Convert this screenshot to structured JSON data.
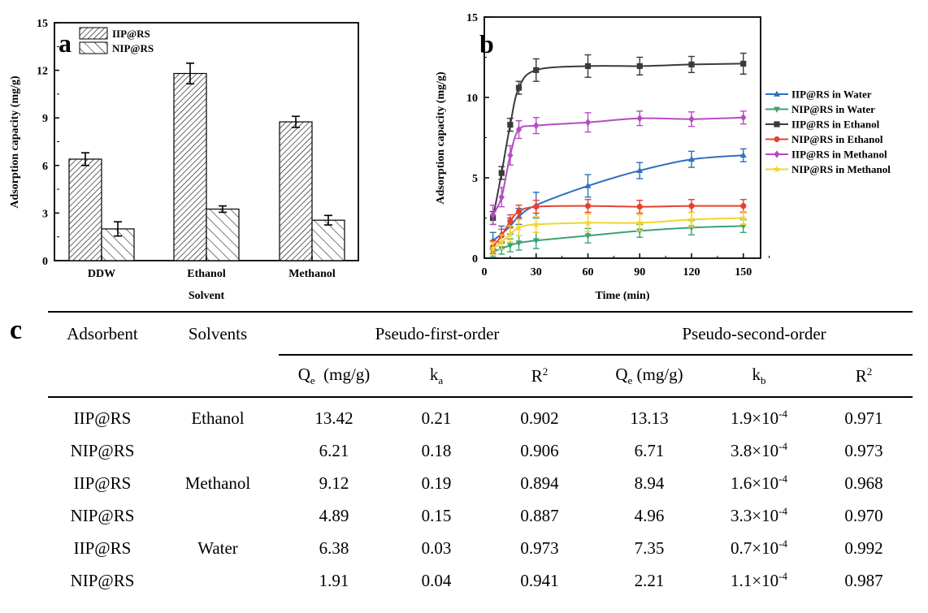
{
  "chart_data": [
    {
      "type": "bar",
      "panel_label": "a",
      "xlabel": "Solvent",
      "ylabel": "Adsorption capacity (mg/g)",
      "categories": [
        "DDW",
        "Ethanol",
        "Methanol"
      ],
      "ylim": [
        0,
        15
      ],
      "yticks": [
        "0",
        "3",
        "6",
        "9",
        "12",
        "15"
      ],
      "legend_position": "top-left",
      "series": [
        {
          "name": "IIP@RS",
          "values": [
            6.4,
            11.8,
            8.75
          ],
          "errors": [
            0.4,
            0.65,
            0.35
          ],
          "pattern": "dense-hatch"
        },
        {
          "name": "NIP@RS",
          "values": [
            2.0,
            3.25,
            2.55
          ],
          "errors": [
            0.45,
            0.2,
            0.3
          ],
          "pattern": "sparse-hatch"
        }
      ]
    },
    {
      "type": "line",
      "panel_label": "b",
      "xlabel": "Time (min)",
      "ylabel": "Adsorption capacity (mg/g)",
      "xlim": [
        0,
        160
      ],
      "ylim": [
        0,
        15
      ],
      "xticks": [
        "0",
        "30",
        "60",
        "90",
        "120",
        "150"
      ],
      "yticks": [
        "0",
        "5",
        "10",
        "15"
      ],
      "legend_position": "right",
      "series": [
        {
          "name": "IIP@RS in Water",
          "color": "#2f6fbf",
          "marker": "triangle-up",
          "x": [
            5,
            10,
            15,
            20,
            30,
            60,
            90,
            120,
            150
          ],
          "y": [
            1.1,
            1.5,
            2.0,
            2.6,
            3.3,
            4.5,
            5.45,
            6.15,
            6.4
          ],
          "err": [
            0.5,
            0.5,
            0.5,
            0.5,
            0.8,
            0.7,
            0.5,
            0.5,
            0.4
          ]
        },
        {
          "name": "NIP@RS in Water",
          "color": "#3aa376",
          "marker": "triangle-down",
          "x": [
            5,
            10,
            15,
            20,
            30,
            60,
            90,
            120,
            150
          ],
          "y": [
            0.4,
            0.6,
            0.8,
            0.95,
            1.1,
            1.4,
            1.7,
            1.9,
            2.0
          ],
          "err": [
            0.3,
            0.35,
            0.4,
            0.45,
            0.5,
            0.45,
            0.4,
            0.45,
            0.4
          ]
        },
        {
          "name": "IIP@RS in Ethanol",
          "color": "#3a3a3a",
          "marker": "square",
          "x": [
            5,
            10,
            15,
            20,
            30,
            60,
            90,
            120,
            150
          ],
          "y": [
            2.5,
            5.3,
            8.3,
            10.6,
            11.7,
            11.95,
            11.95,
            12.05,
            12.1
          ],
          "err": [
            0.4,
            0.4,
            0.4,
            0.4,
            0.7,
            0.7,
            0.55,
            0.5,
            0.65
          ]
        },
        {
          "name": "NIP@RS in Ethanol",
          "color": "#e8412f",
          "marker": "circle",
          "x": [
            5,
            10,
            15,
            20,
            30,
            60,
            90,
            120,
            150
          ],
          "y": [
            0.7,
            1.4,
            2.3,
            2.9,
            3.2,
            3.25,
            3.2,
            3.25,
            3.25
          ],
          "err": [
            0.4,
            0.4,
            0.4,
            0.4,
            0.4,
            0.4,
            0.4,
            0.4,
            0.4
          ]
        },
        {
          "name": "IIP@RS in Methanol",
          "color": "#b54cc2",
          "marker": "diamond",
          "x": [
            5,
            10,
            15,
            20,
            30,
            60,
            90,
            120,
            150
          ],
          "y": [
            2.7,
            3.8,
            6.4,
            8.0,
            8.25,
            8.45,
            8.7,
            8.65,
            8.75
          ],
          "err": [
            0.6,
            0.6,
            0.6,
            0.55,
            0.5,
            0.6,
            0.45,
            0.45,
            0.4
          ]
        },
        {
          "name": "NIP@RS in Methanol",
          "color": "#f2d62a",
          "marker": "star",
          "x": [
            5,
            10,
            15,
            20,
            30,
            60,
            90,
            120,
            150
          ],
          "y": [
            0.6,
            1.0,
            1.5,
            1.9,
            2.1,
            2.2,
            2.2,
            2.4,
            2.5
          ],
          "err": [
            0.4,
            0.45,
            0.5,
            0.5,
            0.5,
            0.55,
            0.5,
            0.45,
            0.4
          ]
        }
      ]
    },
    {
      "type": "table",
      "panel_label": "c",
      "headers": {
        "adsorbent": "Adsorbent",
        "solvents": "Solvents",
        "pfo": "Pseudo-first-order",
        "pso": "Pseudo-second-order",
        "qe1_main": "Q",
        "qe1_sub": "e",
        "qe1_unit": "(mg/g)",
        "ka_main": "k",
        "ka_sub": "a",
        "r2a_main": "R",
        "r2a_sup": "2",
        "qe2_main": "Q",
        "qe2_sub": "e",
        "qe2_unit": "(mg/g)",
        "kb_main": "k",
        "kb_sub": "b",
        "r2b_main": "R",
        "r2b_sup": "2"
      },
      "rows": [
        {
          "adsorbent": "IIP@RS",
          "solvent": "Ethanol",
          "qe1": "13.42",
          "ka": "0.21",
          "r2a": "0.902",
          "qe2": "13.13",
          "kb_base": "1.9×10",
          "kb_exp": "-4",
          "r2b": "0.971"
        },
        {
          "adsorbent": "NIP@RS",
          "solvent": "",
          "qe1": "6.21",
          "ka": "0.18",
          "r2a": "0.906",
          "qe2": "6.71",
          "kb_base": "3.8×10",
          "kb_exp": "-4",
          "r2b": "0.973"
        },
        {
          "adsorbent": "IIP@RS",
          "solvent": "Methanol",
          "qe1": "9.12",
          "ka": "0.19",
          "r2a": "0.894",
          "qe2": "8.94",
          "kb_base": "1.6×10",
          "kb_exp": "-4",
          "r2b": "0.968"
        },
        {
          "adsorbent": "NIP@RS",
          "solvent": "",
          "qe1": "4.89",
          "ka": "0.15",
          "r2a": "0.887",
          "qe2": "4.96",
          "kb_base": "3.3×10",
          "kb_exp": "-4",
          "r2b": "0.970"
        },
        {
          "adsorbent": "IIP@RS",
          "solvent": "Water",
          "qe1": "6.38",
          "ka": "0.03",
          "r2a": "0.973",
          "qe2": "7.35",
          "kb_base": "0.7×10",
          "kb_exp": "-4",
          "r2b": "0.992"
        },
        {
          "adsorbent": "NIP@RS",
          "solvent": "",
          "qe1": "1.91",
          "ka": "0.04",
          "r2a": "0.941",
          "qe2": "2.21",
          "kb_base": "1.1×10",
          "kb_exp": "-4",
          "r2b": "0.987"
        }
      ]
    }
  ]
}
